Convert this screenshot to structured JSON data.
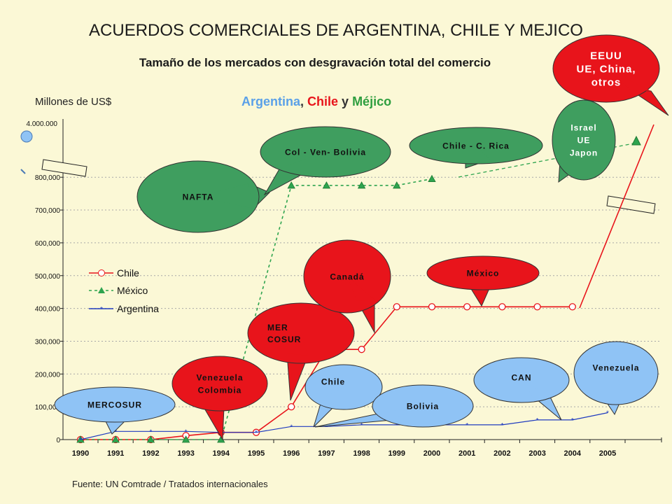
{
  "title": "ACUERDOS COMERCIALES DE ARGENTINA, CHILE Y MEJICO",
  "subtitle": "Tamaño de los mercados con desgravación total del comercio",
  "units_label": "Millones de US$",
  "countries_header": {
    "p1": "Argentina",
    "sep1": ", ",
    "p2": "Chile",
    "sep2": " y ",
    "p3": "Méjico"
  },
  "source": "Fuente: UN Comtrade / Tratados internacionales",
  "colors": {
    "background": "#fbf8d6",
    "chile": "#e8141b",
    "mexico": "#2ea44f",
    "argentina": "#1f3bbf",
    "bubble_green": "#3f9e5f",
    "bubble_red": "#e8141b",
    "bubble_blue": "#8fc3f5"
  },
  "chart_data": {
    "type": "line",
    "x": [
      "1990",
      "1991",
      "1992",
      "1993",
      "1994",
      "1995",
      "1996",
      "1997",
      "1998",
      "1999",
      "2000",
      "2001",
      "2002",
      "2003",
      "2004",
      "2005"
    ],
    "y_ticks": [
      "0",
      "100,000",
      "200,000",
      "300,000",
      "400,000",
      "500,000",
      "600,000",
      "700,000",
      "800,000"
    ],
    "y_break_label": "4.000.000",
    "ylim": [
      0,
      830000
    ],
    "grid": true,
    "legend_position": "left-middle",
    "series": [
      {
        "name": "Chile",
        "key": "chile",
        "values": [
          0,
          0,
          0,
          12000,
          22000,
          22000,
          100000,
          275000,
          275000,
          405000,
          405000,
          405000,
          405000,
          405000,
          405000,
          null
        ],
        "break_to_top": true
      },
      {
        "name": "México",
        "key": "mexico",
        "values": [
          0,
          0,
          0,
          0,
          0,
          null,
          775000,
          775000,
          775000,
          775000,
          795000,
          null,
          null,
          null,
          null,
          null
        ],
        "break_to_top": true
      },
      {
        "name": "Argentina",
        "key": "argentina",
        "values": [
          0,
          25000,
          25000,
          25000,
          22000,
          22000,
          40000,
          40000,
          45000,
          45000,
          45000,
          45000,
          45000,
          60000,
          60000,
          82000
        ]
      }
    ]
  },
  "bubbles": {
    "mercosur": "MERCOSUR",
    "venezuela_colombia": [
      "Venezuela",
      "Colombia"
    ],
    "nafta": "NAFTA",
    "col_ven_bolivia": "Col - Ven- Bolivia",
    "chile_crica": "Chile - C. Rica",
    "israel": [
      "Israel",
      "UE",
      "Japon"
    ],
    "eeuu": [
      "EEUU",
      "UE, China,",
      "otros"
    ],
    "mer_cosur": [
      "MER",
      "COSUR"
    ],
    "canada": "Canadá",
    "mexico": "México",
    "chile": "Chile",
    "bolivia": "Bolivia",
    "can": "CAN",
    "venezuela": "Venezuela"
  }
}
